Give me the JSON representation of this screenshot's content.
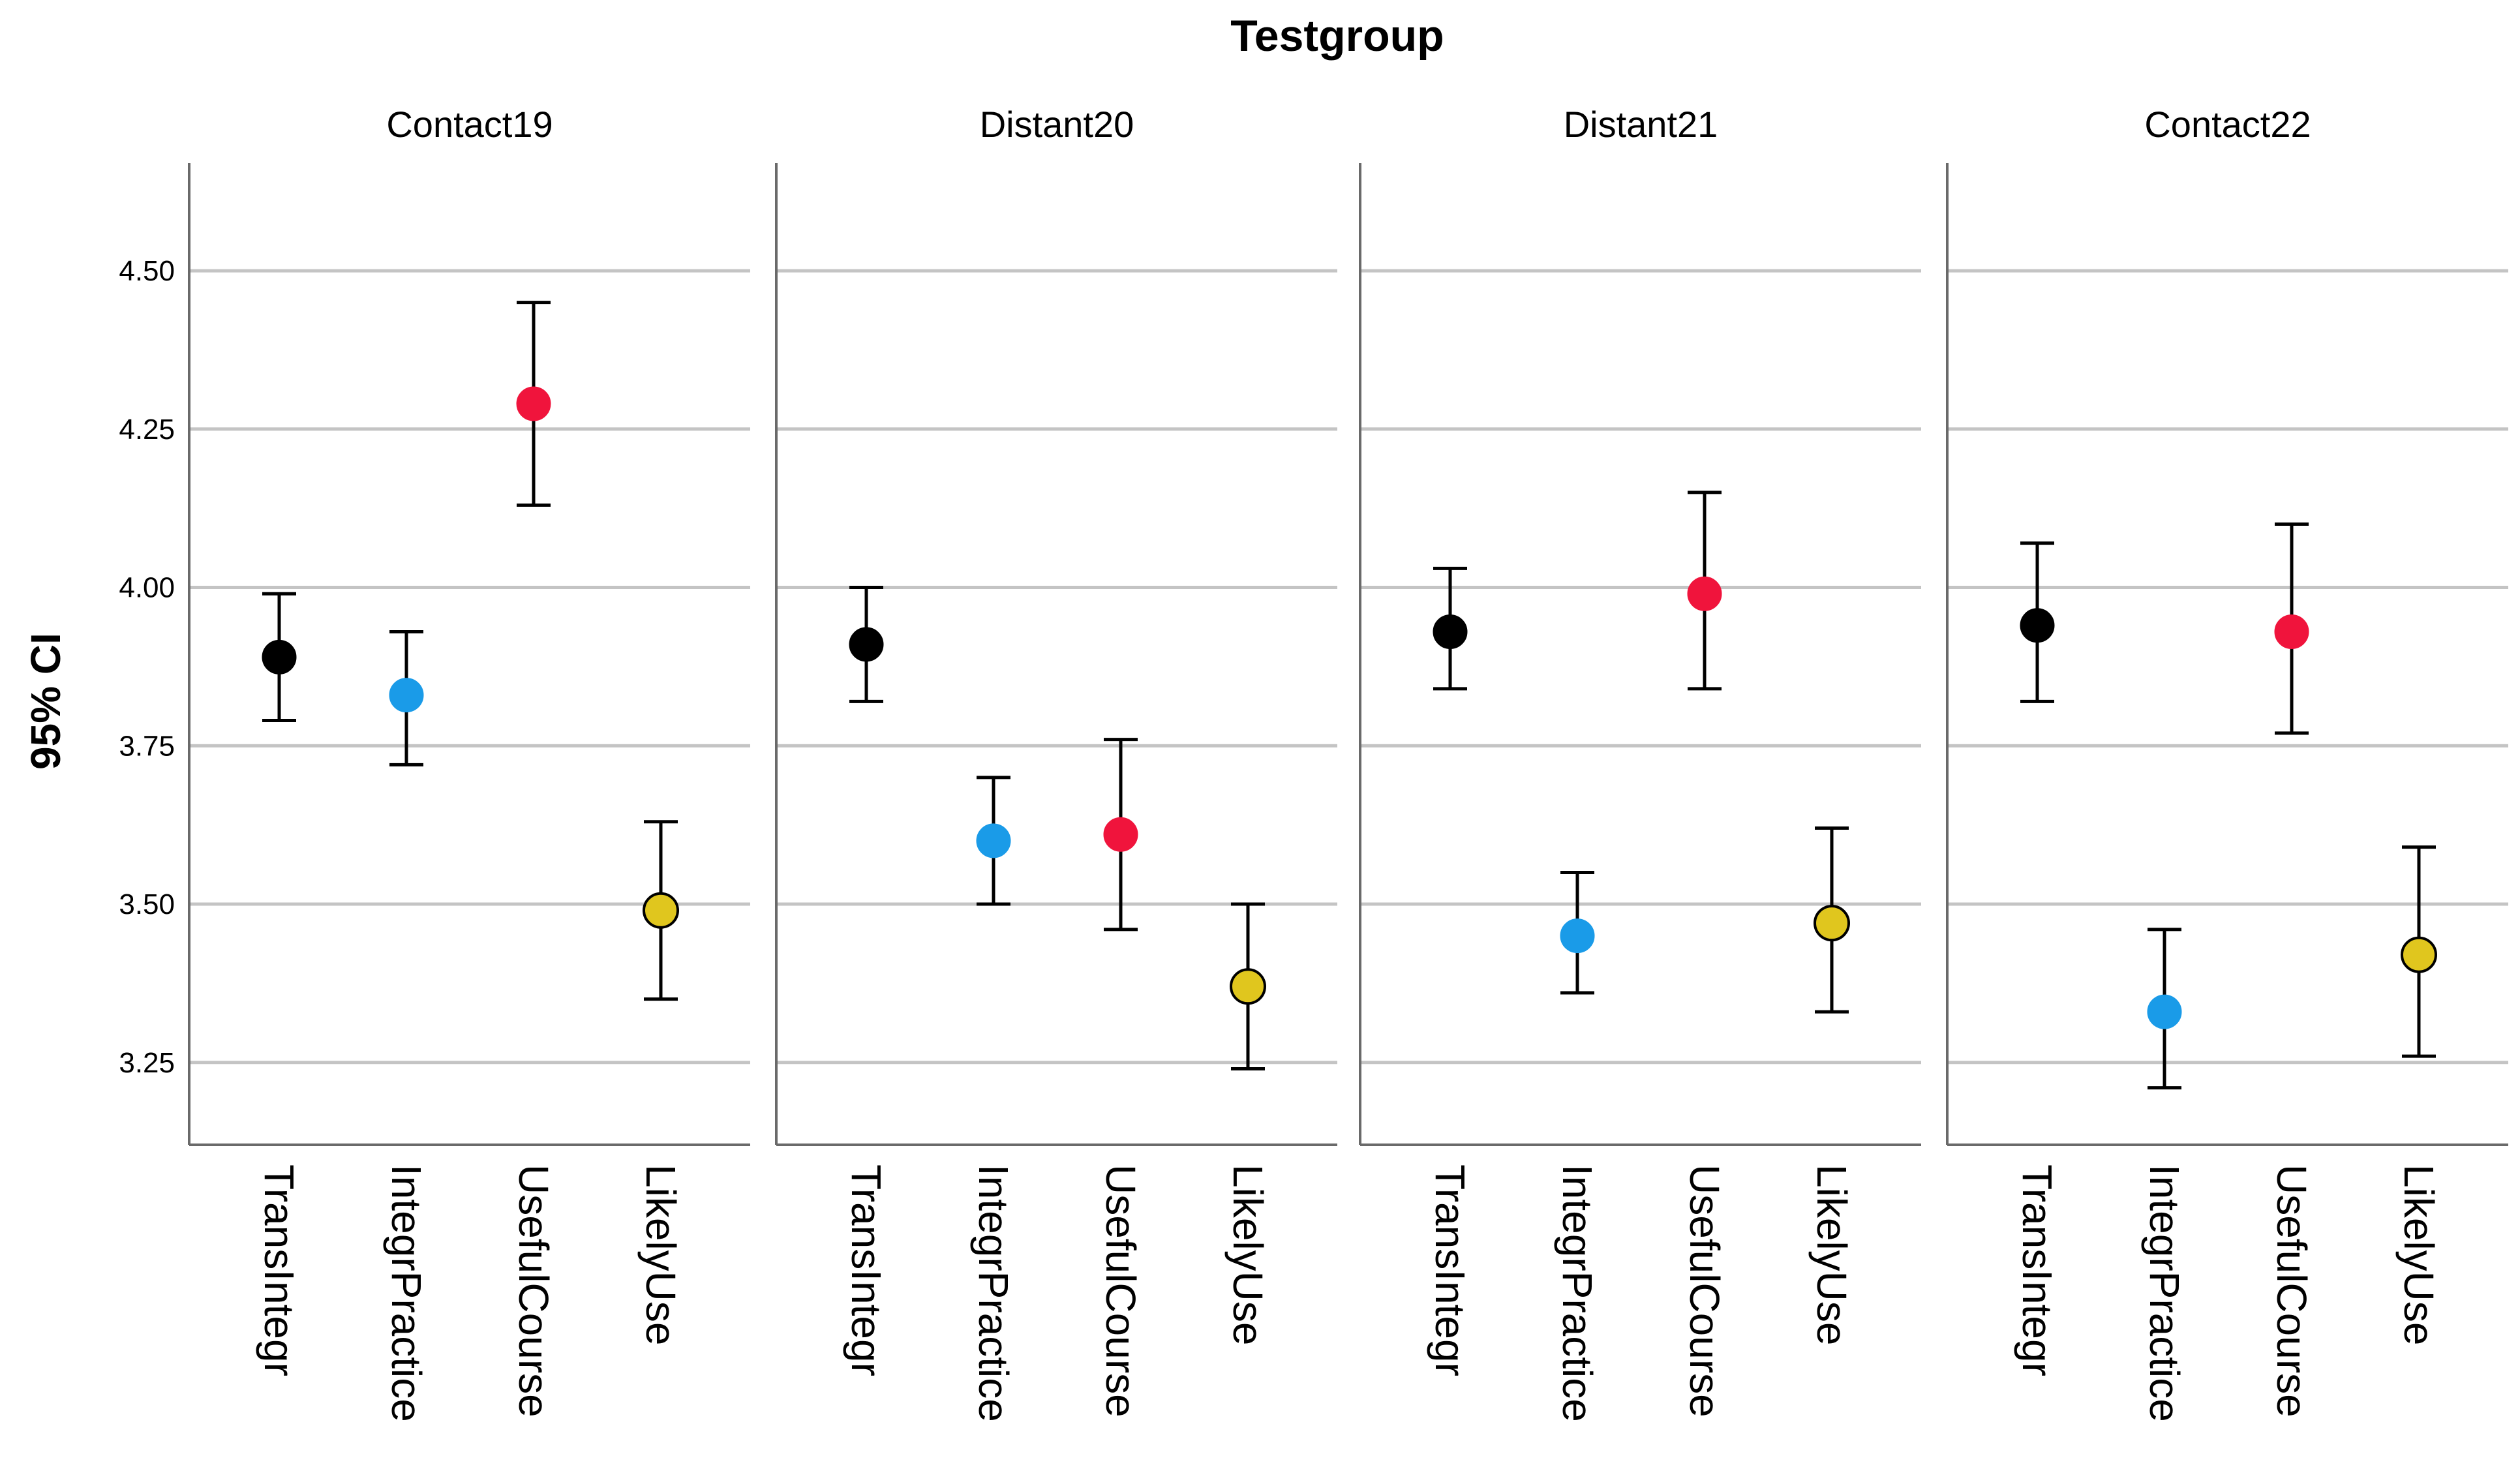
{
  "chart_data": {
    "type": "scatter",
    "subtype": "errorbar-facets",
    "title": "Testgroup",
    "ylabel": "95% CI",
    "xlabel": "",
    "ylim": [
      3.12,
      4.67
    ],
    "yticks": [
      3.25,
      3.5,
      3.75,
      4.0,
      4.25,
      4.5
    ],
    "ytick_labels": [
      "3.25",
      "3.50",
      "3.75",
      "4.00",
      "4.25",
      "4.50"
    ],
    "grid": true,
    "categories": [
      "TransIntegr",
      "IntegrPractice",
      "UsefulCourse",
      "LikelyUse"
    ],
    "category_colors": [
      "#000000",
      "#1a9be8",
      "#f0143c",
      "#e0c61e"
    ],
    "panels": [
      {
        "label": "Contact19",
        "series": [
          {
            "name": "TransIntegr",
            "mean": 3.89,
            "lower": 3.79,
            "upper": 3.99
          },
          {
            "name": "IntegrPractice",
            "mean": 3.83,
            "lower": 3.72,
            "upper": 3.93
          },
          {
            "name": "UsefulCourse",
            "mean": 4.29,
            "lower": 4.13,
            "upper": 4.45
          },
          {
            "name": "LikelyUse",
            "mean": 3.49,
            "lower": 3.35,
            "upper": 3.63
          }
        ]
      },
      {
        "label": "Distant20",
        "series": [
          {
            "name": "TransIntegr",
            "mean": 3.91,
            "lower": 3.82,
            "upper": 4.0
          },
          {
            "name": "IntegrPractice",
            "mean": 3.6,
            "lower": 3.5,
            "upper": 3.7
          },
          {
            "name": "UsefulCourse",
            "mean": 3.61,
            "lower": 3.46,
            "upper": 3.76
          },
          {
            "name": "LikelyUse",
            "mean": 3.37,
            "lower": 3.24,
            "upper": 3.5
          }
        ]
      },
      {
        "label": "Distant21",
        "series": [
          {
            "name": "TransIntegr",
            "mean": 3.93,
            "lower": 3.84,
            "upper": 4.03
          },
          {
            "name": "IntegrPractice",
            "mean": 3.45,
            "lower": 3.36,
            "upper": 3.55
          },
          {
            "name": "UsefulCourse",
            "mean": 3.99,
            "lower": 3.84,
            "upper": 4.15
          },
          {
            "name": "LikelyUse",
            "mean": 3.47,
            "lower": 3.33,
            "upper": 3.62
          }
        ]
      },
      {
        "label": "Contact22",
        "series": [
          {
            "name": "TransIntegr",
            "mean": 3.94,
            "lower": 3.82,
            "upper": 4.07
          },
          {
            "name": "IntegrPractice",
            "mean": 3.33,
            "lower": 3.21,
            "upper": 3.46
          },
          {
            "name": "UsefulCourse",
            "mean": 3.93,
            "lower": 3.77,
            "upper": 4.1
          },
          {
            "name": "LikelyUse",
            "mean": 3.42,
            "lower": 3.26,
            "upper": 3.59
          }
        ]
      }
    ]
  }
}
